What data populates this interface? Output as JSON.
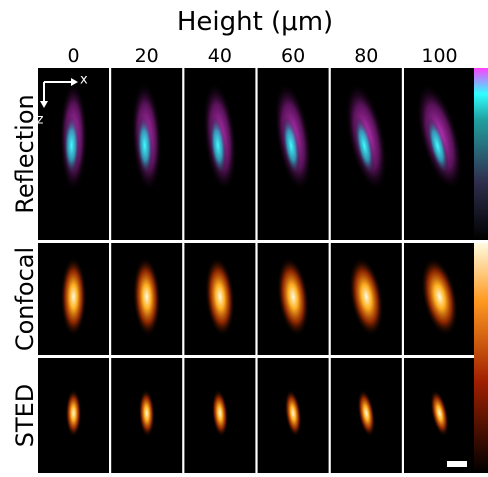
{
  "title": "Height (μm)",
  "columns": [
    "0",
    "20",
    "40",
    "60",
    "80",
    "100"
  ],
  "rows": [
    "Reflection",
    "Confocal",
    "STED"
  ],
  "axes": {
    "x": "x",
    "z": "z"
  }
}
